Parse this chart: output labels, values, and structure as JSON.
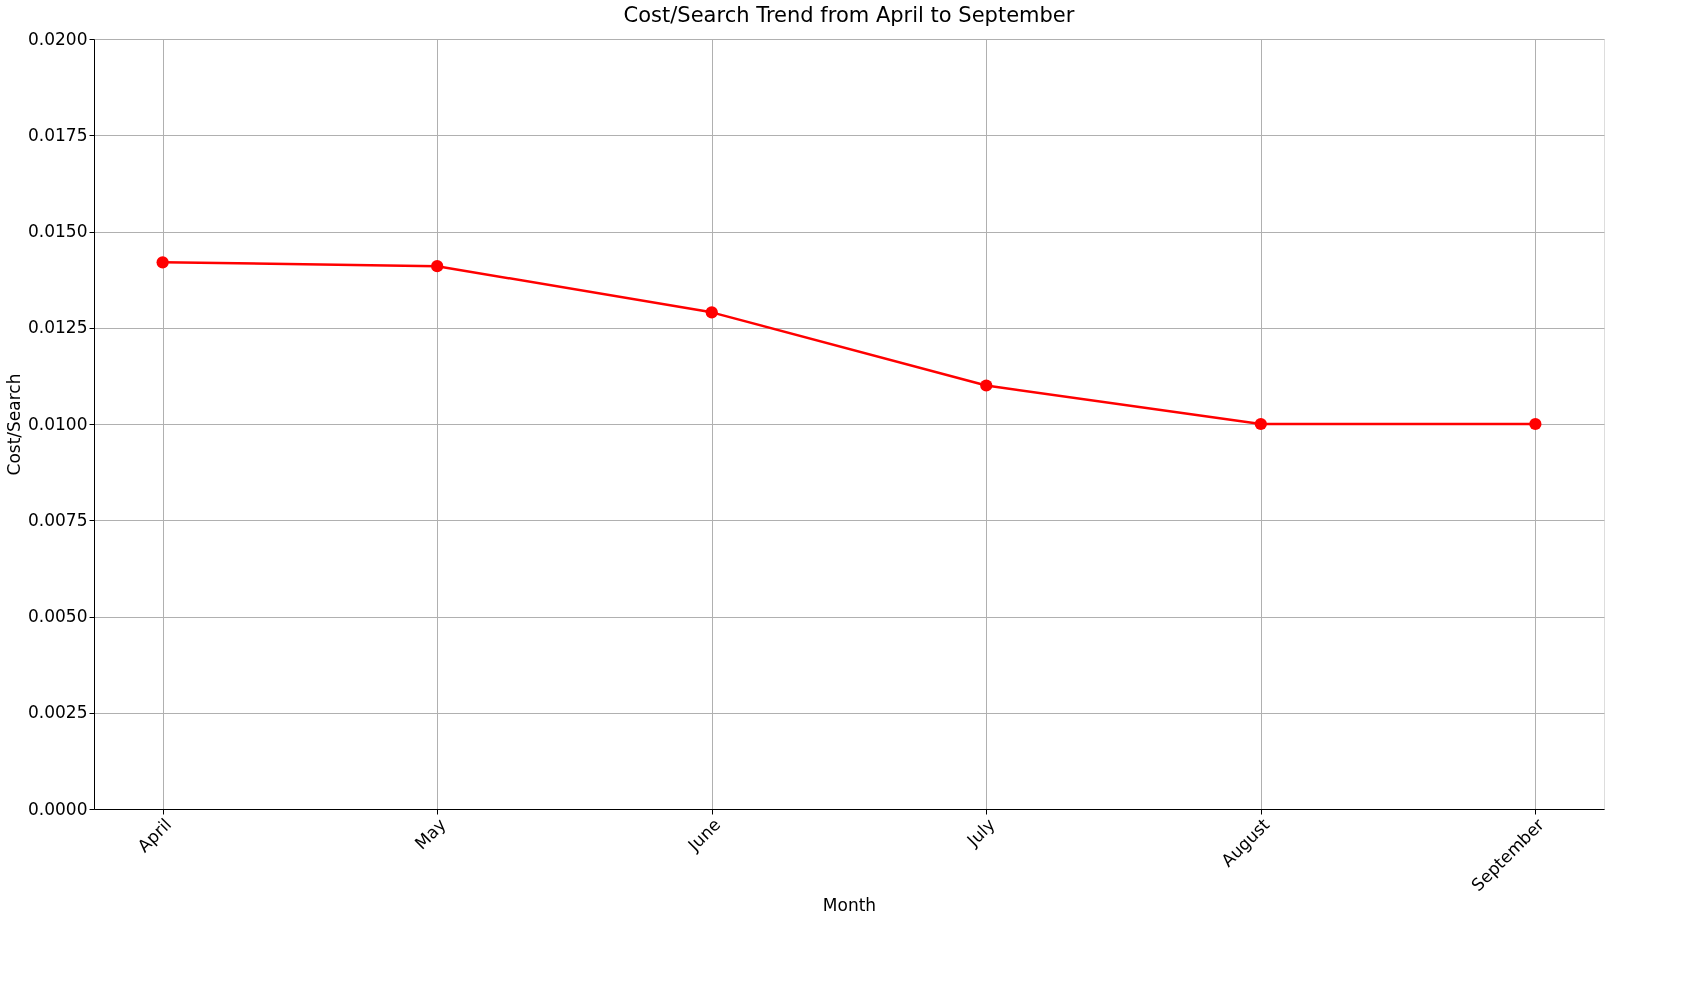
{
  "chart_data": {
    "type": "line",
    "title": "Cost/Search Trend from April to September",
    "xlabel": "Month",
    "ylabel": "Cost/Search",
    "categories": [
      "April",
      "May",
      "June",
      "July",
      "August",
      "September"
    ],
    "series": [
      {
        "color": "#ff0000",
        "values": [
          0.0142,
          0.0141,
          0.0129,
          0.011,
          0.01,
          0.01
        ]
      }
    ],
    "ylim": [
      0,
      0.02
    ],
    "yticks": [
      {
        "value": 0,
        "label": "0.0000"
      },
      {
        "value": 0.0025,
        "label": "0.0025"
      },
      {
        "value": 0.005,
        "label": "0.0050"
      },
      {
        "value": 0.0075,
        "label": "0.0075"
      },
      {
        "value": 0.01,
        "label": "0.0100"
      },
      {
        "value": 0.0125,
        "label": "0.0125"
      },
      {
        "value": 0.015,
        "label": "0.0150"
      },
      {
        "value": 0.0175,
        "label": "0.0175"
      },
      {
        "value": 0.02,
        "label": "0.0200"
      }
    ],
    "grid": true,
    "marker": "circle",
    "line_style": "solid"
  }
}
